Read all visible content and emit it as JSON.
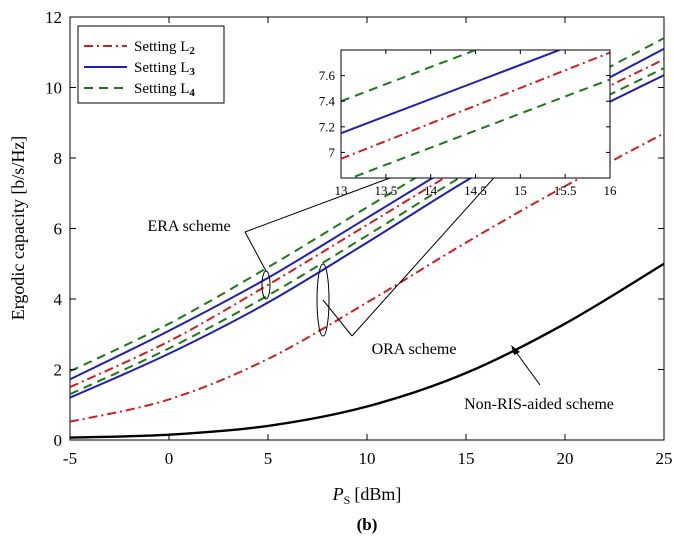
{
  "chart_data": {
    "type": "line",
    "xlabel_symbol": "P",
    "xlabel_sub": "S",
    "xlabel_unit": "[dBm]",
    "ylabel": "Ergodic capacity [b/s/Hz]",
    "caption": "(b)",
    "xlim": [
      -5,
      25
    ],
    "ylim": [
      0,
      12
    ],
    "xticks": [
      "-5",
      "0",
      "5",
      "10",
      "15",
      "20",
      "25"
    ],
    "yticks": [
      "0",
      "2",
      "4",
      "6",
      "8",
      "10",
      "12"
    ],
    "grid": false,
    "legend_position": "top-left",
    "legend": [
      {
        "label": "Setting L",
        "sub": "2",
        "color": "#cc1f1f",
        "dash": "dashdot"
      },
      {
        "label": "Setting L",
        "sub": "3",
        "color": "#1f1fb4",
        "dash": "solid"
      },
      {
        "label": "Setting L",
        "sub": "4",
        "color": "#1a7a1a",
        "dash": "dashed"
      }
    ],
    "x": [
      -5,
      0,
      5,
      10,
      15,
      20,
      25
    ],
    "series": [
      {
        "group": "ERA",
        "setting": "L4",
        "color": "#1a7a1a",
        "dash": "dashed",
        "values": [
          1.95,
          3.3,
          4.9,
          6.6,
          8.3,
          9.9,
          11.4
        ]
      },
      {
        "group": "ERA",
        "setting": "L3",
        "color": "#1f1fb4",
        "dash": "solid",
        "values": [
          1.72,
          3.1,
          4.6,
          6.3,
          8.0,
          9.6,
          11.1
        ]
      },
      {
        "group": "ERA",
        "setting": "L2",
        "color": "#cc1f1f",
        "dash": "dashdot",
        "values": [
          1.5,
          2.8,
          4.4,
          6.1,
          7.8,
          9.4,
          10.8
        ]
      },
      {
        "group": "ORA",
        "setting": "L4",
        "color": "#1a7a1a",
        "dash": "dashed",
        "values": [
          1.3,
          2.6,
          4.1,
          5.8,
          7.55,
          9.15,
          10.55
        ]
      },
      {
        "group": "ORA",
        "setting": "L3",
        "color": "#1f1fb4",
        "dash": "solid",
        "values": [
          1.2,
          2.45,
          3.9,
          5.6,
          7.35,
          8.95,
          10.35
        ]
      },
      {
        "group": "ORA",
        "setting": "L2",
        "color": "#cc1f1f",
        "dash": "dashdot",
        "values": [
          0.52,
          1.15,
          2.3,
          3.9,
          5.6,
          7.2,
          8.7
        ]
      },
      {
        "group": "Non-RIS",
        "setting": "",
        "color": "#000000",
        "dash": "solid",
        "values": [
          0.07,
          0.15,
          0.4,
          0.95,
          1.9,
          3.3,
          5.0
        ]
      }
    ],
    "annotations": [
      {
        "name": "era-label",
        "text": "ERA scheme"
      },
      {
        "name": "ora-label",
        "text": "ORA scheme"
      },
      {
        "name": "nonris-label",
        "text": "Non-RIS-aided scheme"
      }
    ],
    "inset": {
      "xlim": [
        13,
        16
      ],
      "ylim": [
        6.8,
        7.8
      ],
      "xticks": [
        "13",
        "13.5",
        "14",
        "14.5",
        "15",
        "15.5",
        "16"
      ],
      "yticks": [
        "7",
        "7.2",
        "7.4",
        "7.6"
      ],
      "x": [
        13,
        16
      ],
      "series": [
        {
          "color": "#1a7a1a",
          "dash": "dashed",
          "values": [
            7.4,
            8.2
          ]
        },
        {
          "color": "#1f1fb4",
          "dash": "solid",
          "values": [
            7.15,
            7.95
          ]
        },
        {
          "color": "#cc1f1f",
          "dash": "dashdot",
          "values": [
            6.95,
            7.78
          ]
        },
        {
          "color": "#1a7a1a",
          "dash": "dashed",
          "values": [
            6.77,
            7.57
          ]
        }
      ]
    }
  }
}
